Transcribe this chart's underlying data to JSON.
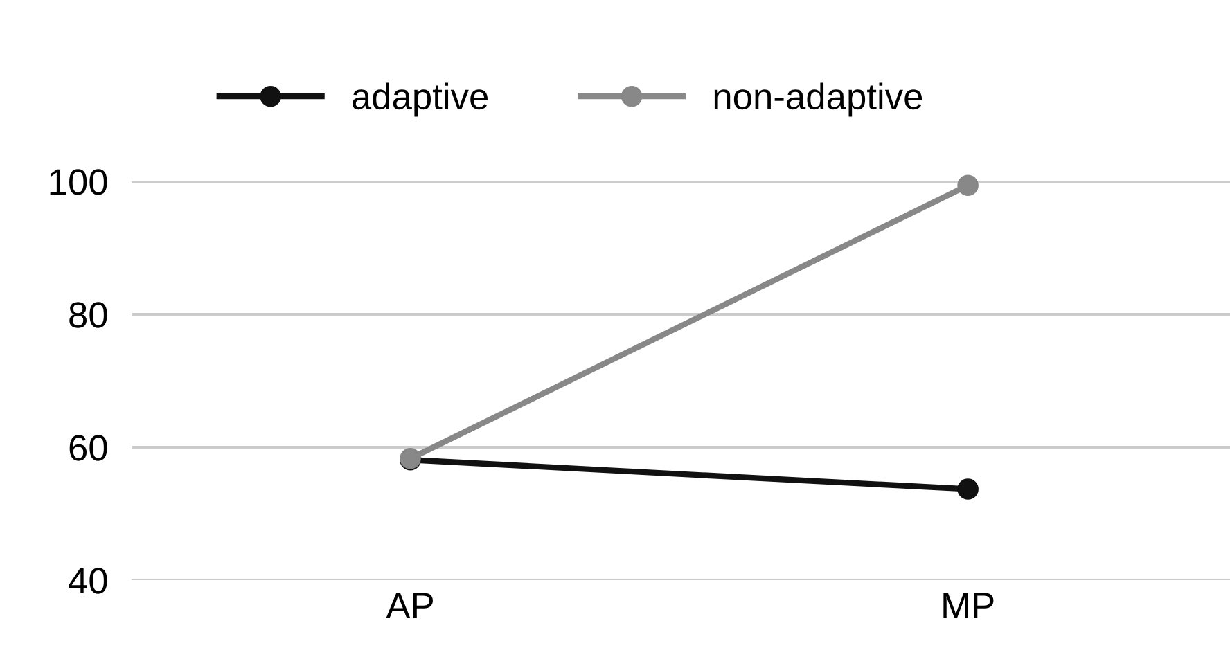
{
  "chart_data": {
    "type": "line",
    "categories": [
      "AP",
      "MP"
    ],
    "series": [
      {
        "name": "adaptive",
        "color": "#111111",
        "values": [
          58.1,
          53.7
        ]
      },
      {
        "name": "non-adaptive",
        "color": "#888888",
        "values": [
          58.3,
          99.4
        ]
      }
    ],
    "ylim": [
      40,
      100
    ],
    "yticks": [
      40,
      60,
      80,
      100
    ],
    "grid": "y",
    "legend": "top left",
    "marker": "circle",
    "line_style": "solid"
  }
}
